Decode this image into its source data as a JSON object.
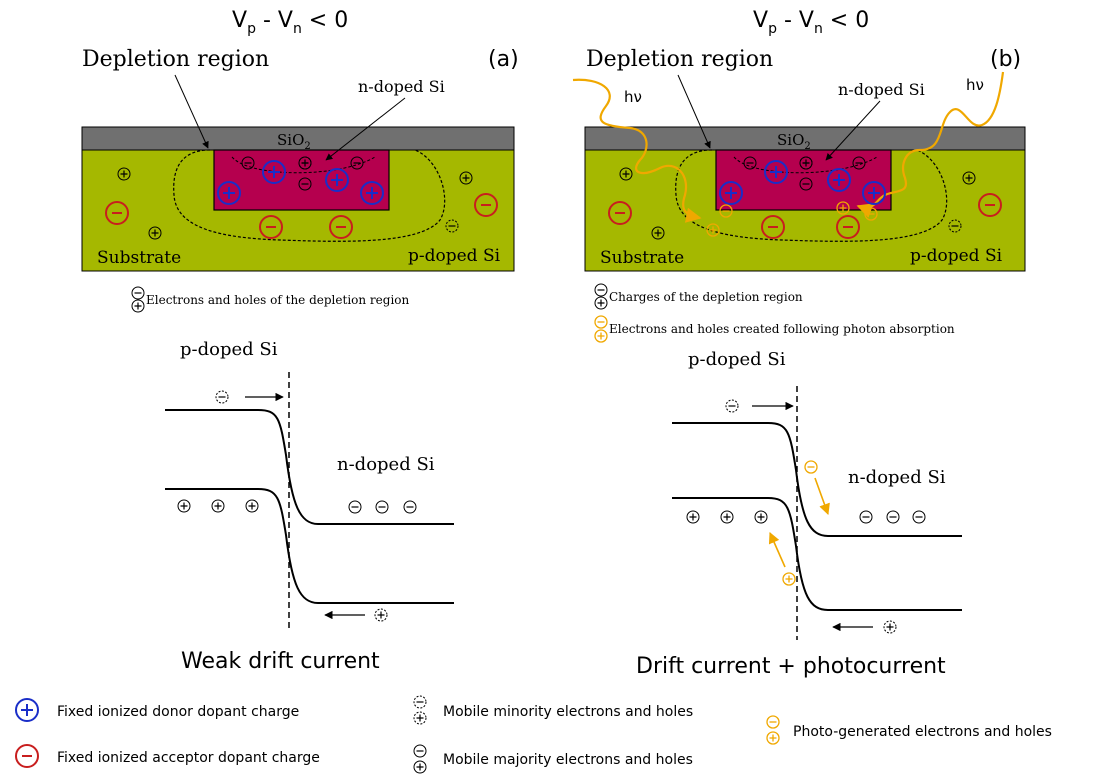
{
  "panels": {
    "a": {
      "letter": "(a)",
      "bias_v": "V",
      "bias_p": "p",
      "bias_mid": " - V",
      "bias_n": "n",
      "bias_end": " < 0",
      "depletion_label": "Depletion region",
      "ndoped_label": "n-doped Si",
      "oxide_main": "SiO",
      "oxide_sub": "2",
      "substrate_label": "Substrate",
      "pdoped_label": "p-doped Si",
      "legend_note": "Electrons and holes of the depletion region",
      "band_p_label": "p-doped Si",
      "band_n_label": "n-doped Si",
      "caption": "Weak drift current"
    },
    "b": {
      "letter": "(b)",
      "bias_v": "V",
      "bias_p": "p",
      "bias_mid": " - V",
      "bias_n": "n",
      "bias_end": " < 0",
      "depletion_label": "Depletion region",
      "ndoped_label": "n-doped Si",
      "oxide_main": "SiO",
      "oxide_sub": "2",
      "substrate_label": "Substrate",
      "pdoped_label": "p-doped Si",
      "photon_label": "hν",
      "legend_note1": "Charges of the depletion region",
      "legend_note2": "Electrons and holes created following photon absorption",
      "band_p_label": "p-doped Si",
      "band_n_label": "n-doped Si",
      "caption": "Drift current + photocurrent"
    }
  },
  "legend": {
    "donor": "Fixed ionized donor dopant charge",
    "acceptor": "Fixed ionized acceptor dopant charge",
    "minority": "Mobile minority electrons and holes",
    "majority": "Mobile majority electrons and holes",
    "photo": "Photo-generated electrons and holes"
  },
  "colors": {
    "substrate": "#a5b800",
    "ndoped": "#b5004e",
    "oxide": "#707070",
    "donor": "#1a2ec8",
    "acceptor": "#c81e1e",
    "photo": "#f0a800"
  }
}
